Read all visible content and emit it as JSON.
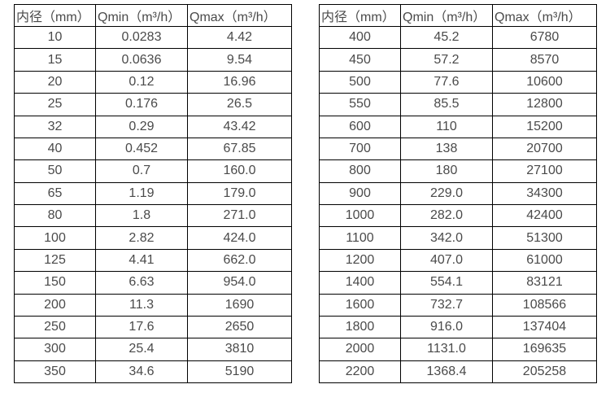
{
  "colors": {
    "background": "#ffffff",
    "border": "#000000",
    "text": "#4a4a4a"
  },
  "tables": [
    {
      "name": "flow-range-small-diameters",
      "headers": [
        "内径（mm）",
        "Qmin（m³/h）",
        "Qmax（m³/h）"
      ],
      "rows": [
        [
          "10",
          "0.0283",
          "4.42"
        ],
        [
          "15",
          "0.0636",
          "9.54"
        ],
        [
          "20",
          "0.12",
          "16.96"
        ],
        [
          "25",
          "0.176",
          "26.5"
        ],
        [
          "32",
          "0.29",
          "43.42"
        ],
        [
          "40",
          "0.452",
          "67.85"
        ],
        [
          "50",
          "0.7",
          "160.0"
        ],
        [
          "65",
          "1.19",
          "179.0"
        ],
        [
          "80",
          "1.8",
          "271.0"
        ],
        [
          "100",
          "2.82",
          "424.0"
        ],
        [
          "125",
          "4.41",
          "662.0"
        ],
        [
          "150",
          "6.63",
          "954.0"
        ],
        [
          "200",
          "11.3",
          "1690"
        ],
        [
          "250",
          "17.6",
          "2650"
        ],
        [
          "300",
          "25.4",
          "3810"
        ],
        [
          "350",
          "34.6",
          "5190"
        ]
      ]
    },
    {
      "name": "flow-range-large-diameters",
      "headers": [
        "内径（mm）",
        "Qmin（m³/h）",
        "Qmax（m³/h）"
      ],
      "rows": [
        [
          "400",
          "45.2",
          "6780"
        ],
        [
          "450",
          "57.2",
          "8570"
        ],
        [
          "500",
          "77.6",
          "10600"
        ],
        [
          "550",
          "85.5",
          "12800"
        ],
        [
          "600",
          "110",
          "15200"
        ],
        [
          "700",
          "138",
          "20700"
        ],
        [
          "800",
          "180",
          "27100"
        ],
        [
          "900",
          "229.0",
          "34300"
        ],
        [
          "1000",
          "282.0",
          "42400"
        ],
        [
          "1100",
          "342.0",
          "51300"
        ],
        [
          "1200",
          "407.0",
          "61000"
        ],
        [
          "1400",
          "554.1",
          "83121"
        ],
        [
          "1600",
          "732.7",
          "108566"
        ],
        [
          "1800",
          "916.0",
          "137404"
        ],
        [
          "2000",
          "1131.0",
          "169635"
        ],
        [
          "2200",
          "1368.4",
          "205258"
        ]
      ]
    }
  ]
}
